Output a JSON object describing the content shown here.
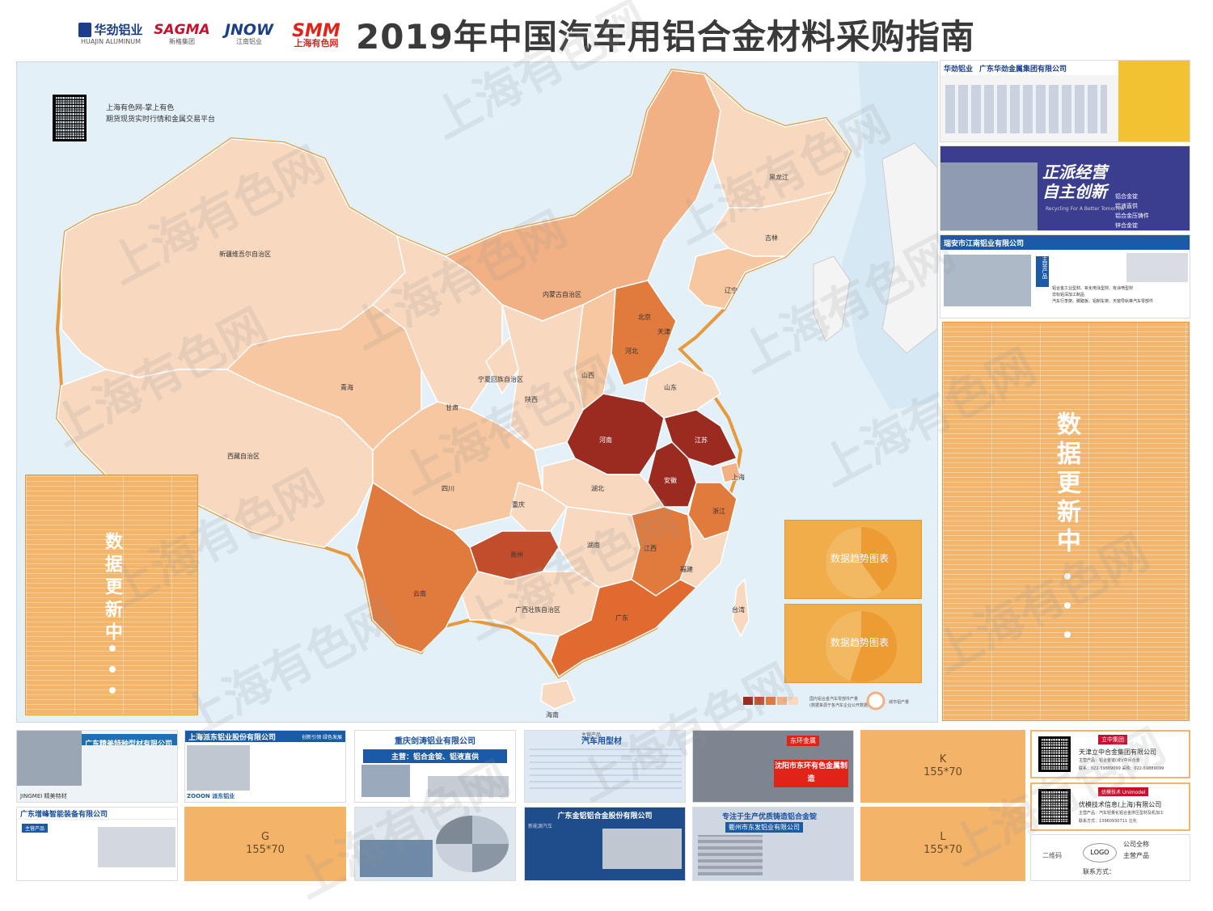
{
  "header": {
    "title": "2019年中国汽车用铝合金材料采购指南",
    "logos": [
      {
        "main": "华劲铝业",
        "sub": "HUAJIN ALUMINUM",
        "color": "#1a3e8a",
        "icon": "huajin-logo-icon"
      },
      {
        "main": "SAGMA",
        "sub": "新格集团",
        "color": "#c8102e",
        "icon": "sagma-logo-icon"
      },
      {
        "main": "JNOW",
        "sub": "江南铝业",
        "color": "#1b3e86",
        "icon": "jnow-logo-icon"
      },
      {
        "main": "SMM",
        "sub": "上海有色网",
        "color": "#e2231a",
        "icon": "smm-logo-icon"
      }
    ]
  },
  "qr_block": {
    "line1": "上海有色网-掌上有色",
    "line2": "期货现货实时行情和金属交易平台"
  },
  "watermark": "上海有色网",
  "map": {
    "provinces": [
      "新疆维吾尔自治区",
      "西藏自治区",
      "青海",
      "甘肃",
      "内蒙古自治区",
      "黑龙江",
      "吉林",
      "辽宁",
      "北京",
      "天津",
      "河北",
      "山西",
      "陕西",
      "宁夏回族自治区",
      "山东",
      "河南",
      "江苏",
      "上海",
      "安徽",
      "湖北",
      "四川",
      "重庆",
      "浙江",
      "江西",
      "湖南",
      "贵州",
      "云南",
      "广西壮族自治区",
      "广东",
      "福建",
      "台湾",
      "海南"
    ],
    "legend_label": "国内铝合金汽车零部件产量",
    "legend_sublabel": "(数据来源于各汽车企业公开数据)",
    "legend_circle_label": "城市铝产量",
    "legend_colors": [
      "#9b2b21",
      "#c24d2c",
      "#e07a3d",
      "#f2b184",
      "#f8d9c0"
    ]
  },
  "charts": [
    {
      "label": "数据趋势图表"
    },
    {
      "label": "数据趋势图表"
    }
  ],
  "side_panels": {
    "left_text": "数据更新中",
    "right_text": "数据更新中"
  },
  "right_ads": [
    {
      "title": "广东华劲金属集团有限公司",
      "sub": "华劲铝业"
    },
    {
      "title": "正派经营 自主创新",
      "sub": "Recycling For A Better Tomorrow",
      "tags": [
        "铝合金锭",
        "铝液直供",
        "铝合金压铸件",
        "锌合金锭"
      ]
    },
    {
      "title": "瑞安市江南铝业有限公司",
      "sub": "主营产品",
      "tags": [
        "铝合金工业型材、氧化电泳型材、有涂喷型材",
        "非标铝深加工制品",
        "汽车行李架、脚踏板、铝制车架、天窗导轨等汽车零部件"
      ]
    }
  ],
  "bottom_ads": [
    {
      "title": "广东精美特种型材有限公司",
      "footer": "JINGMEI 精美特材"
    },
    {
      "title": "上海派东铝业股份有限公司",
      "sub": "创新引领 绿色发展",
      "footer": "ZOOON 派东铝业"
    },
    {
      "title": "重庆剑涛铝业有限公司",
      "sub": "主营：铝合金锭、铝液直供"
    },
    {
      "title": "汽车用型材",
      "sub": "主营产品"
    },
    {
      "title": "沈阳市东环有色金属制造",
      "sub": "东环金属"
    },
    {
      "title": "广东增峰智能装备有限公司",
      "sub": "主营产品"
    },
    {
      "title": "广东金铝铝合金股份有限公司",
      "sub": "新能源汽车"
    },
    {
      "title": "专注于生产优质铸造铝合金锭",
      "sub": "衢州市东发铝业有限公司"
    }
  ],
  "placeholders": [
    {
      "letter": "G",
      "size": "155*70"
    },
    {
      "letter": "K",
      "size": "155*70"
    },
    {
      "letter": "L",
      "size": "155*70"
    }
  ],
  "right_cards": [
    {
      "company": "天津立中合金集团有限公司",
      "line1": "主营产品：铝合金锭(液)/中间合金",
      "line2": "联系：022-59889099    采购：022-59889099",
      "logo": "立中集团"
    },
    {
      "company": "优模技术信息(上海)有限公司",
      "line1": "主营产品：汽车轻量化铝合金挤压型材及机加工",
      "line2": "联系方式：13960930711 汪先",
      "logo": "优模技术 Unimodel"
    }
  ],
  "template_card": {
    "qr": "二维码",
    "logo": "LOGO",
    "name": "公司全称",
    "product": "主营产品",
    "contact": "联系方式："
  },
  "colors": {
    "title": "#3a3a3a",
    "sea": "#e4f0f8",
    "border_line": "#e69a3c",
    "panel": "#f2b56b",
    "dark": "#9b2b21",
    "mid": "#e07a3d",
    "light": "#f2b184",
    "pale": "#f8d9c0"
  }
}
